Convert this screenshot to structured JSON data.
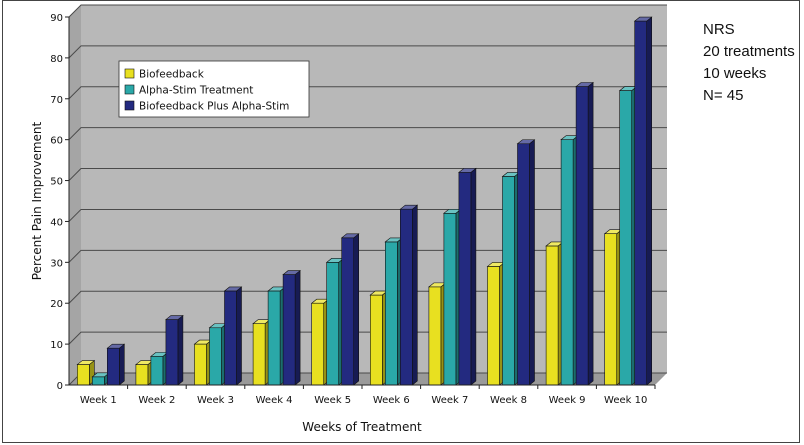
{
  "chart_data": {
    "type": "bar",
    "title": "",
    "xlabel": "Weeks of Treatment",
    "ylabel": "Percent Pain Improvement",
    "ylim": [
      0,
      90
    ],
    "yticks": [
      0,
      10,
      20,
      30,
      40,
      50,
      60,
      70,
      80,
      90
    ],
    "grid": true,
    "legend_position": "top-left",
    "categories": [
      "Week 1",
      "Week 2",
      "Week 3",
      "Week 4",
      "Week 5",
      "Week 6",
      "Week 7",
      "Week 8",
      "Week 9",
      "Week 10"
    ],
    "series": [
      {
        "name": "Biofeedback",
        "color": "#e8e020",
        "values": [
          5,
          5,
          10,
          15,
          20,
          22,
          24,
          29,
          34,
          37
        ]
      },
      {
        "name": "Alpha-Stim Treatment",
        "color": "#2aa8a8",
        "values": [
          2,
          7,
          14,
          23,
          30,
          35,
          42,
          51,
          60,
          72
        ]
      },
      {
        "name": "Biofeedback Plus Alpha-Stim",
        "color": "#232a80",
        "values": [
          9,
          16,
          23,
          27,
          36,
          43,
          52,
          59,
          73,
          89
        ]
      }
    ]
  },
  "notes": [
    "NRS",
    "20 treatments",
    "10 weeks",
    "N= 45"
  ]
}
